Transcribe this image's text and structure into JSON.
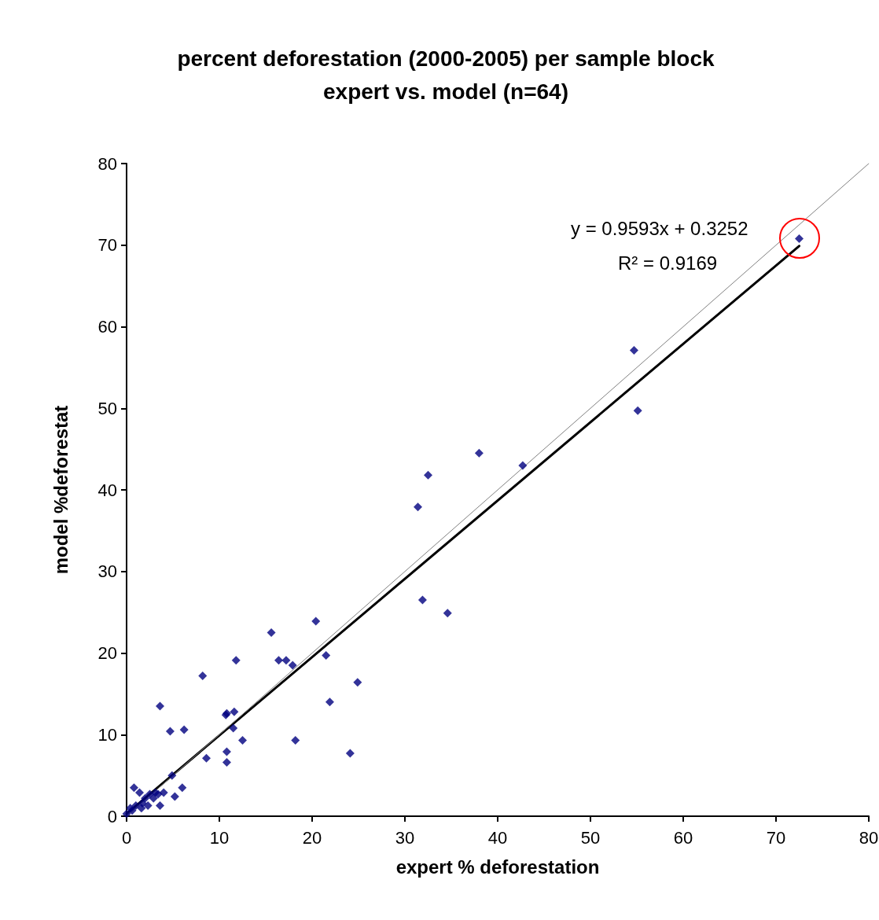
{
  "chart_data": {
    "type": "scatter",
    "title": "percent deforestation (2000-2005) per sample block\nexpert vs. model (n=64)",
    "xlabel": "expert % deforestation",
    "ylabel": "model %deforestat",
    "xlim": [
      0,
      80
    ],
    "ylim": [
      0,
      80
    ],
    "xticks": [
      0,
      10,
      20,
      30,
      40,
      50,
      60,
      70,
      80
    ],
    "yticks": [
      0,
      10,
      20,
      30,
      40,
      50,
      60,
      70,
      80
    ],
    "grid": false,
    "annotations": [
      "y = 0.9593x + 0.3252",
      "R² = 0.9169"
    ],
    "series": [
      {
        "marker": "diamond",
        "color": "#000080",
        "x": [
          72.5,
          54.7,
          55.1,
          38.0,
          42.7,
          32.5,
          31.4,
          31.9,
          34.6,
          20.4,
          15.6,
          11.8,
          16.4,
          17.2,
          17.9,
          21.5,
          8.2,
          24.9,
          21.9,
          3.6,
          11.6,
          10.8,
          10.7,
          6.2,
          4.7,
          11.5,
          12.5,
          18.2,
          8.6,
          10.8,
          10.8,
          24.1,
          4.9,
          5.2,
          6.0,
          0.8,
          1.4,
          3.6,
          4.0,
          3.1,
          2.5,
          1.7,
          2.3,
          1.0,
          0.4,
          0.0,
          1.6,
          2.9,
          3.4,
          2.0,
          0.6
        ],
        "values": [
          70.8,
          57.1,
          49.7,
          44.5,
          43.0,
          41.8,
          37.9,
          26.5,
          24.9,
          23.9,
          22.5,
          19.1,
          19.1,
          19.1,
          18.5,
          19.7,
          17.2,
          16.4,
          14.0,
          13.5,
          12.8,
          12.6,
          12.4,
          10.6,
          10.4,
          10.8,
          9.3,
          9.3,
          7.1,
          7.9,
          6.6,
          7.7,
          5.0,
          2.4,
          3.5,
          3.5,
          2.9,
          1.3,
          2.9,
          2.9,
          2.7,
          1.6,
          1.3,
          1.3,
          1.0,
          0.3,
          1.0,
          2.2,
          2.7,
          2.2,
          0.7
        ]
      },
      {
        "type": "line",
        "marker": "none",
        "line_style": "solid",
        "color": "#000000",
        "x": [
          0,
          72.5
        ],
        "values": [
          0.3,
          69.9
        ]
      },
      {
        "type": "line",
        "marker": "none",
        "line_style": "solid",
        "color": "#808080",
        "x": [
          0,
          80
        ],
        "values": [
          0,
          80
        ]
      }
    ]
  }
}
